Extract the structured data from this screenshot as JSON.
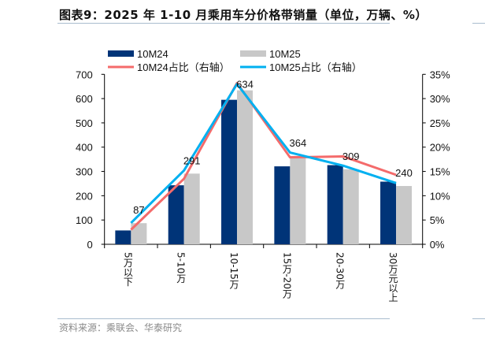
{
  "title": "图表9：2025 年 1-10 月乘用车分价格带销量（单位，万辆、%）",
  "source": "资料来源：乘联会、华泰研究",
  "chart_data": {
    "type": "bar",
    "title": "图表9：2025 年 1-10 月乘用车分价格带销量（单位，万辆、%）",
    "categories": [
      "5万以下",
      "5-10万",
      "10-15万",
      "15万-20万",
      "20-30万",
      "30万元以上"
    ],
    "series": [
      {
        "name": "10M24",
        "kind": "bar",
        "axis": "left",
        "color": "#003478",
        "values": [
          57,
          243,
          595,
          321,
          326,
          258
        ]
      },
      {
        "name": "10M25",
        "kind": "bar",
        "axis": "left",
        "color": "#c8c8c8",
        "values": [
          87,
          291,
          634,
          364,
          309,
          240
        ],
        "data_labels": [
          "87",
          "291",
          "634",
          "364",
          "309",
          "240"
        ]
      },
      {
        "name": "10M24占比（右轴）",
        "kind": "line",
        "axis": "right",
        "color": "#f46b6b",
        "values": [
          3.0,
          13.5,
          33.2,
          17.9,
          18.1,
          14.3
        ]
      },
      {
        "name": "10M25占比（右轴）",
        "kind": "line",
        "axis": "right",
        "color": "#00b0f0",
        "values": [
          4.4,
          15.2,
          33.0,
          18.9,
          16.2,
          12.6
        ]
      }
    ],
    "y_left": {
      "range": [
        0,
        700
      ],
      "ticks": [
        "0",
        "100",
        "200",
        "300",
        "400",
        "500",
        "600",
        "700"
      ]
    },
    "y_right": {
      "range": [
        0,
        35
      ],
      "ticks": [
        "0%",
        "5%",
        "10%",
        "15%",
        "20%",
        "25%",
        "30%",
        "35%"
      ]
    },
    "grid": false,
    "legend": "top"
  }
}
